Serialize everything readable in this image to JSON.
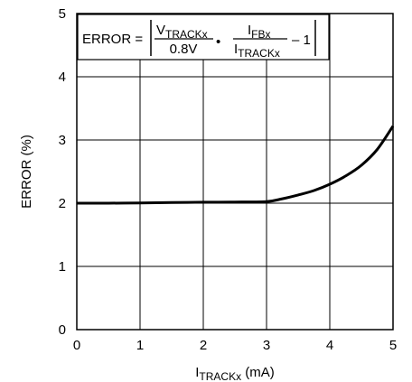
{
  "chart_data": {
    "type": "line",
    "title": "",
    "xlabel": {
      "base": "I",
      "sub": "TRACKx",
      "unit": " (mA)"
    },
    "ylabel": "ERROR (%)",
    "xlim": [
      0,
      5
    ],
    "ylim": [
      0,
      5
    ],
    "x_ticks": [
      "0",
      "1",
      "2",
      "3",
      "4",
      "5"
    ],
    "y_ticks": [
      "0",
      "1",
      "2",
      "3",
      "4",
      "5"
    ],
    "grid": true,
    "annotation": {
      "lhs": "ERROR =",
      "v_base": "V",
      "v_sub": "TRACKx",
      "denominator1": "0.8V",
      "bullet": "•",
      "i_base": "I",
      "i_num_sub": "FBx",
      "i_den_sub": "TRACKx",
      "minus_one": "– 1"
    },
    "series": [
      {
        "x": [
          0,
          0.5,
          1,
          1.5,
          2,
          2.5,
          3,
          3.25,
          3.5,
          3.75,
          4,
          4.25,
          4.5,
          4.75,
          5
        ],
        "y": [
          2.0,
          2.0,
          2.005,
          2.01,
          2.015,
          2.018,
          2.025,
          2.07,
          2.13,
          2.2,
          2.3,
          2.43,
          2.6,
          2.85,
          3.22
        ]
      }
    ]
  }
}
